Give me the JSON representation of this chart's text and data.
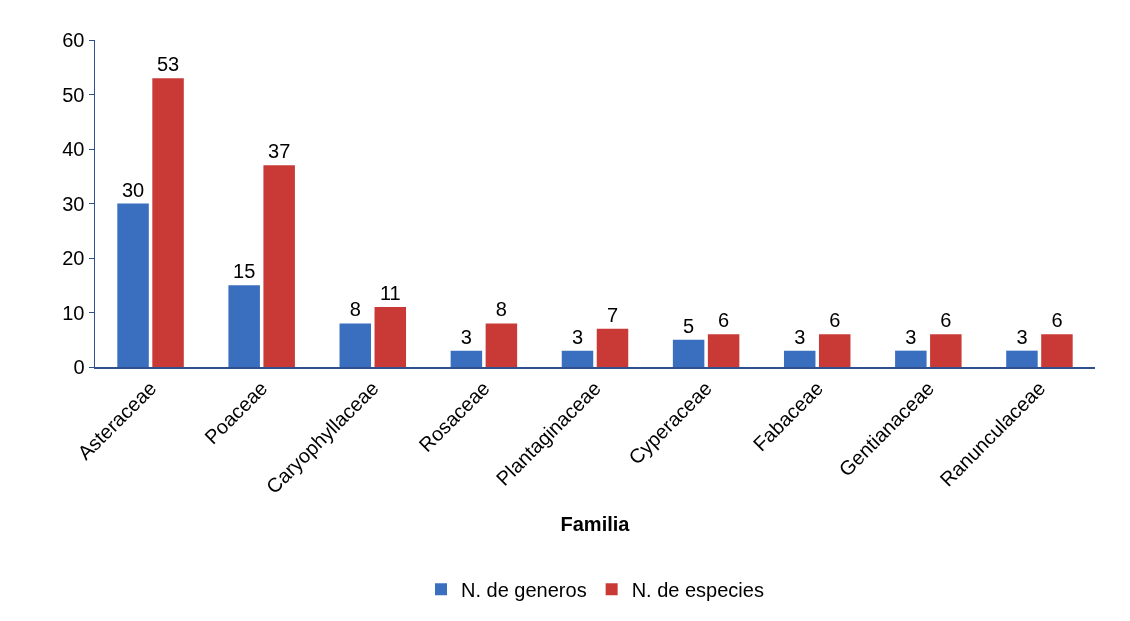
{
  "chart_data": {
    "type": "bar",
    "xlabel": "Familia",
    "categories": [
      "Asteraceae",
      "Poaceae",
      "Caryophyllaceae",
      "Rosaceae",
      "Plantaginaceae",
      "Cyperaceae",
      "Fabaceae",
      "Gentianaceae",
      "Ranunculaceae"
    ],
    "series": [
      {
        "name": "N. de generos",
        "color": "#3a6fbf",
        "values": [
          30,
          15,
          8,
          3,
          3,
          5,
          3,
          3,
          3
        ]
      },
      {
        "name": "N. de especies",
        "color": "#c93a37",
        "values": [
          53,
          37,
          11,
          8,
          7,
          6,
          6,
          6,
          6
        ]
      }
    ],
    "ylim": [
      0,
      60
    ],
    "yticks": [
      0,
      10,
      20,
      30,
      40,
      50,
      60
    ],
    "grid": false,
    "legend": "bottom",
    "data_labels": true
  }
}
